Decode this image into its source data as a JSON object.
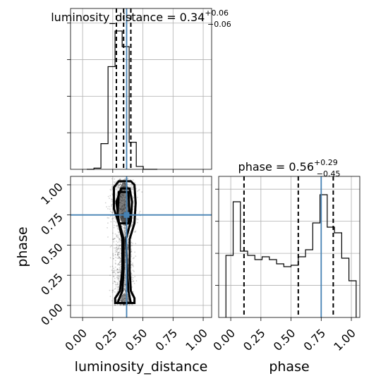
{
  "figure": "corner-plot",
  "colors": {
    "truth": "#4682b4",
    "hist": "#000000",
    "grid": "#b0b0b0"
  },
  "chart_data": {
    "type": "corner",
    "parameters": [
      {
        "key": "luminosity_distance",
        "label": "luminosity_distance",
        "title_main": "luminosity_distance = 0.34",
        "title_sup": "+0.06",
        "title_sub": "−0.06",
        "range": [
          -0.1,
          1.07
        ],
        "ticks": [
          0.0,
          0.25,
          0.5,
          0.75,
          1.0
        ],
        "tick_labels": [
          "0.00",
          "0.25",
          "0.50",
          "0.75",
          "1.00"
        ],
        "quantiles": [
          0.28,
          0.34,
          0.4
        ],
        "truth": 0.365,
        "hist_bins": [
          0.035,
          0.094,
          0.152,
          0.211,
          0.269,
          0.328,
          0.386,
          0.445,
          0.503,
          0.562,
          0.62
        ],
        "hist_values": [
          0.0,
          0.008,
          0.18,
          0.72,
          0.97,
          0.86,
          0.19,
          0.02,
          0.0,
          0.0
        ]
      },
      {
        "key": "phase",
        "label": "phase",
        "title_main": "phase = 0.56",
        "title_sup": "+0.29",
        "title_sub": "−0.45",
        "range": [
          -0.1,
          1.07
        ],
        "ticks": [
          0.0,
          0.25,
          0.5,
          0.75,
          1.0
        ],
        "tick_labels": [
          "0.00",
          "0.25",
          "0.50",
          "0.75",
          "1.00"
        ],
        "quantiles": [
          0.11,
          0.56,
          0.85
        ],
        "truth": 0.75,
        "hist_bins": [
          -0.04,
          0.02,
          0.08,
          0.14,
          0.2,
          0.26,
          0.32,
          0.38,
          0.44,
          0.5,
          0.56,
          0.62,
          0.68,
          0.74,
          0.8,
          0.86,
          0.92,
          0.98,
          1.04
        ],
        "hist_values": [
          0.44,
          0.82,
          0.47,
          0.44,
          0.41,
          0.43,
          0.41,
          0.38,
          0.36,
          0.37,
          0.43,
          0.48,
          0.67,
          0.87,
          0.64,
          0.6,
          0.42,
          0.26
        ]
      }
    ],
    "contours": [
      [
        [
          0.27,
          0.02
        ],
        [
          0.43,
          0.02
        ],
        [
          0.43,
          0.06
        ],
        [
          0.4,
          0.12
        ],
        [
          0.39,
          0.3
        ],
        [
          0.39,
          0.55
        ],
        [
          0.43,
          0.68
        ],
        [
          0.44,
          0.85
        ],
        [
          0.43,
          1.0
        ],
        [
          0.4,
          1.03
        ],
        [
          0.3,
          1.03
        ],
        [
          0.26,
          0.98
        ],
        [
          0.26,
          0.8
        ],
        [
          0.3,
          0.68
        ],
        [
          0.33,
          0.55
        ],
        [
          0.33,
          0.3
        ],
        [
          0.31,
          0.12
        ],
        [
          0.27,
          0.06
        ]
      ],
      [
        [
          0.29,
          0.02
        ],
        [
          0.4,
          0.02
        ],
        [
          0.38,
          0.12
        ],
        [
          0.37,
          0.3
        ],
        [
          0.36,
          0.55
        ],
        [
          0.4,
          0.7
        ],
        [
          0.41,
          0.86
        ],
        [
          0.39,
          0.97
        ],
        [
          0.32,
          0.97
        ],
        [
          0.28,
          0.86
        ],
        [
          0.3,
          0.7
        ],
        [
          0.34,
          0.55
        ],
        [
          0.34,
          0.3
        ],
        [
          0.33,
          0.12
        ]
      ],
      [
        [
          0.29,
          0.75
        ],
        [
          0.3,
          0.68
        ],
        [
          0.38,
          0.68
        ],
        [
          0.39,
          0.75
        ],
        [
          0.38,
          0.94
        ],
        [
          0.3,
          0.94
        ]
      ]
    ],
    "scatter_region": {
      "x_center": 0.34,
      "x_spread": 0.06,
      "y_range": [
        0.0,
        1.05
      ]
    }
  }
}
